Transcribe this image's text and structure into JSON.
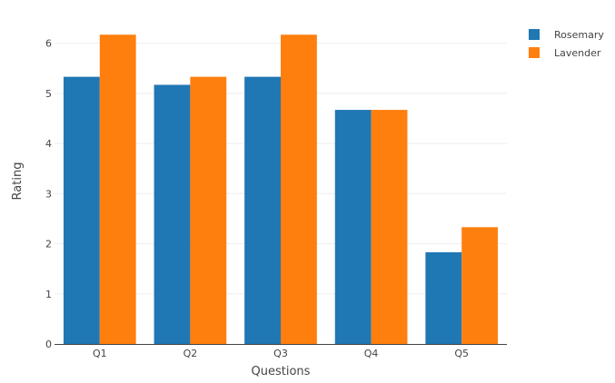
{
  "chart_data": {
    "type": "bar",
    "categories": [
      "Q1",
      "Q2",
      "Q3",
      "Q4",
      "Q5"
    ],
    "series": [
      {
        "name": "Rosemary",
        "color": "#1f77b4",
        "values": [
          5.33,
          5.17,
          5.33,
          4.67,
          1.83
        ]
      },
      {
        "name": "Lavender",
        "color": "#ff7f0e",
        "values": [
          6.17,
          5.33,
          6.17,
          4.67,
          2.33
        ]
      }
    ],
    "xlabel": "Questions",
    "ylabel": "Rating",
    "ylim": [
      0,
      6.5
    ],
    "yticks": [
      0,
      1,
      2,
      3,
      4,
      5,
      6
    ],
    "grid": true,
    "legend_position": "top-right"
  }
}
